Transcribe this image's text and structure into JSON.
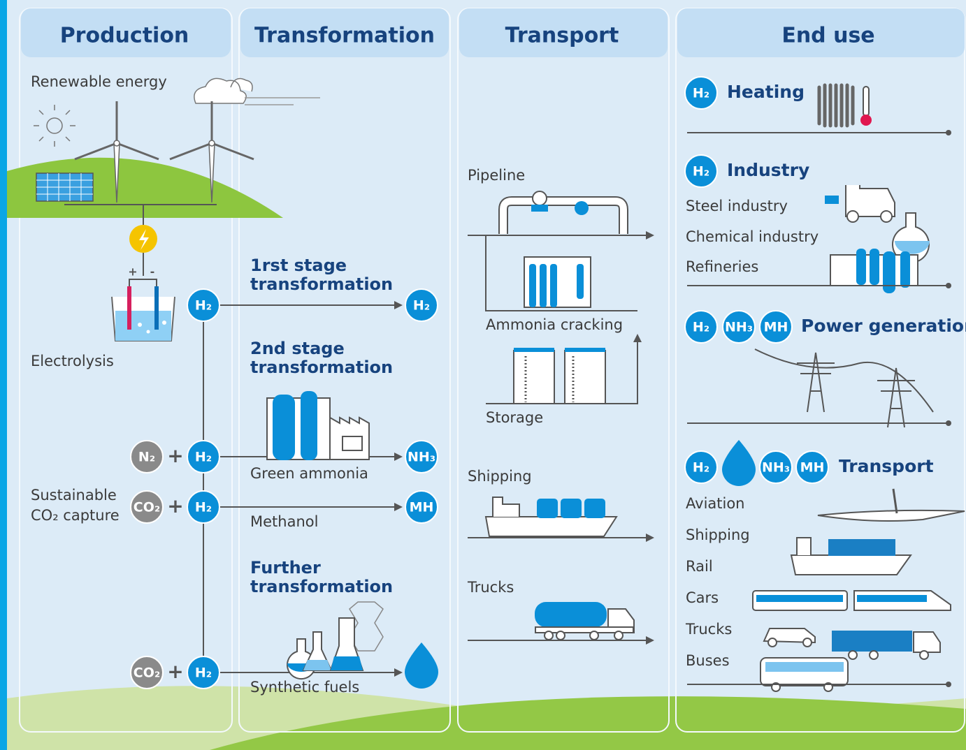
{
  "columns": {
    "production": {
      "title": "Production",
      "renewable_energy": "Renewable energy",
      "electrode_signs": [
        "+",
        "-"
      ],
      "electrolysis": "Electrolysis",
      "co2_capture": [
        "Sustainable",
        "CO₂ capture"
      ]
    },
    "transformation": {
      "title": "Transformation",
      "first_stage": [
        "1rst stage",
        "transformation"
      ],
      "second_stage": [
        "2nd stage",
        "transformation"
      ],
      "green_ammonia": "Green ammonia",
      "methanol": "Methanol",
      "further": [
        "Further",
        "transformation"
      ],
      "synthetic_fuels": "Synthetic fuels"
    },
    "transport": {
      "title": "Transport",
      "pipeline": "Pipeline",
      "ammonia_cracking": "Ammonia cracking",
      "storage": "Storage",
      "shipping": "Shipping",
      "trucks": "Trucks"
    },
    "end_use": {
      "title": "End use",
      "heating": "Heating",
      "industry": {
        "title": "Industry",
        "items": [
          "Steel industry",
          "Chemical industry",
          "Refineries"
        ]
      },
      "power_generation": "Power generation",
      "transport": {
        "title": "Transport",
        "items": [
          "Aviation",
          "Shipping",
          "Rail",
          "Cars",
          "Trucks",
          "Buses"
        ]
      }
    }
  },
  "badges": {
    "h2": "H₂",
    "n2": "N₂",
    "co2": "CO₂",
    "nh3": "NH₃",
    "mh": "MH",
    "plus": "+"
  }
}
